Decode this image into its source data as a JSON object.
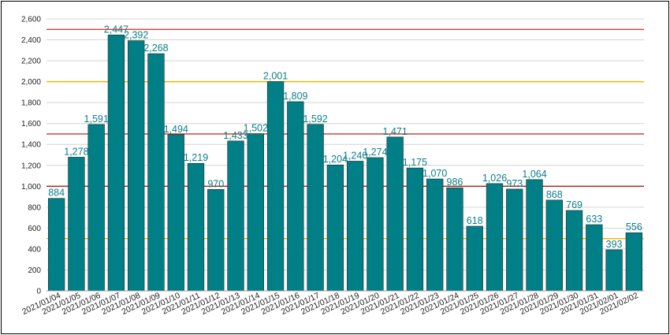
{
  "chart_data": {
    "type": "bar",
    "title": "",
    "xlabel": "",
    "ylabel": "",
    "ylim": [
      0,
      2600
    ],
    "yticks": [
      0,
      200,
      400,
      600,
      800,
      1000,
      1200,
      1400,
      1600,
      1800,
      2000,
      2200,
      2400,
      2600
    ],
    "ytick_labels": [
      "0",
      "200",
      "400",
      "600",
      "800",
      "1,000",
      "1,200",
      "1,400",
      "1,600",
      "1,800",
      "2,000",
      "2,200",
      "2,400",
      "2,600"
    ],
    "grid": true,
    "legend": "none",
    "bar_color": "#007f86",
    "categories": [
      "2021/01/04",
      "2021/01/05",
      "2021/01/06",
      "2021/01/07",
      "2021/01/08",
      "2021/01/09",
      "2021/01/10",
      "2021/01/11",
      "2021/01/12",
      "2021/01/13",
      "2021/01/14",
      "2021/01/15",
      "2021/01/16",
      "2021/01/17",
      "2021/01/18",
      "2021/01/19",
      "2021/01/20",
      "2021/01/21",
      "2021/01/22",
      "2021/01/23",
      "2021/01/24",
      "2021/01/25",
      "2021/01/26",
      "2021/01/27",
      "2021/01/28",
      "2021/01/29",
      "2021/01/30",
      "2021/01/31",
      "2021/02/01",
      "2021/02/02"
    ],
    "values": [
      884,
      1278,
      1591,
      2447,
      2392,
      2268,
      1494,
      1219,
      970,
      1433,
      1502,
      2001,
      1809,
      1592,
      1204,
      1240,
      1274,
      1471,
      1175,
      1070,
      986,
      618,
      1026,
      973,
      1064,
      868,
      769,
      633,
      393,
      556
    ],
    "value_labels": [
      "884",
      "1,278",
      "1,591",
      "2,447",
      "2,392",
      "2,268",
      "1,494",
      "1,219",
      "970",
      "1,433",
      "1,502",
      "2,001",
      "1,809",
      "1,592",
      "1,204",
      "1,240",
      "1,274",
      "1,471",
      "1,175",
      "1,070",
      "986",
      "618",
      "1,026",
      "973",
      "1,064",
      "868",
      "769",
      "633",
      "393",
      "556"
    ],
    "reference_lines": [
      {
        "value": 2500,
        "color": "#e53935"
      },
      {
        "value": 2000,
        "color": "#f4b400"
      },
      {
        "value": 1500,
        "color": "#c0392b"
      },
      {
        "value": 1000,
        "color": "#b71c1c"
      },
      {
        "value": 500,
        "color": "#f4b400"
      }
    ]
  }
}
